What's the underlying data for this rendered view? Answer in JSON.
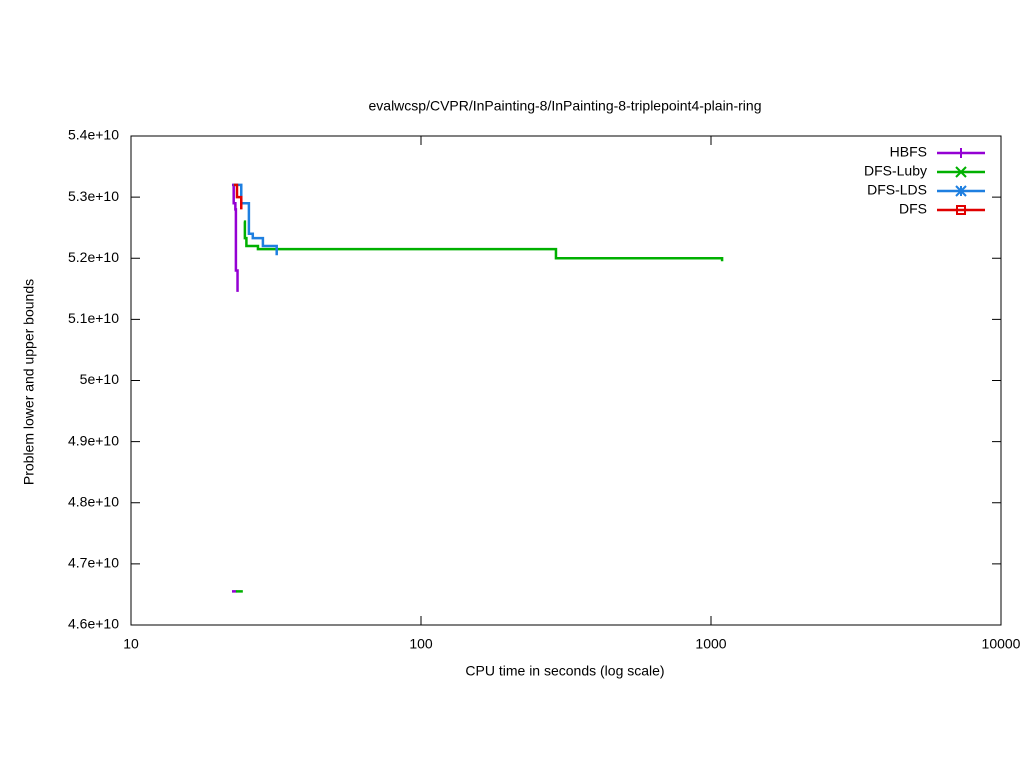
{
  "chart_data": {
    "type": "line",
    "title": "evalwcsp/CVPR/InPainting-8/InPainting-8-triplepoint4-plain-ring",
    "x_label": "CPU time in seconds (log scale)",
    "y_label": "Problem lower and upper bounds",
    "x_log": true,
    "steps": true,
    "legend": "top-right",
    "xlim": [
      10,
      10000
    ],
    "xticks": [
      10,
      100,
      1000,
      10000
    ],
    "ylim": [
      46000000000,
      54000000000
    ],
    "yticks": [
      {
        "value": 46000000000,
        "label": "4.6e+10"
      },
      {
        "value": 47000000000,
        "label": "4.7e+10"
      },
      {
        "value": 48000000000,
        "label": "4.8e+10"
      },
      {
        "value": 49000000000,
        "label": "4.9e+10"
      },
      {
        "value": 50000000000,
        "label": "5e+10"
      },
      {
        "value": 51000000000,
        "label": "5.1e+10"
      },
      {
        "value": 52000000000,
        "label": "5.2e+10"
      },
      {
        "value": 53000000000,
        "label": "5.3e+10"
      },
      {
        "value": 54000000000,
        "label": "5.4e+10"
      }
    ],
    "series": [
      {
        "name": "HBFS",
        "color": "#9400d3",
        "marker": "plus",
        "x": [
          22.3,
          22.6,
          22.9,
          23.0,
          23.3,
          null,
          22.3,
          23.1
        ],
        "values": [
          53200000000,
          52900000000,
          52800000000,
          51800000000,
          51450000000,
          null,
          46550000000,
          46550000000
        ]
      },
      {
        "name": "DFS-Luby",
        "color": "#00b000",
        "marker": "cross",
        "x": [
          24.5,
          24.7,
          25.0,
          27.4,
          292,
          1092,
          null,
          23.0,
          24.3
        ],
        "values": [
          52600000000,
          52330000000,
          52200000000,
          52150000000,
          52000000000,
          51950000000,
          null,
          46550000000,
          46550000000
        ]
      },
      {
        "name": "DFS-LDS",
        "color": "#1e7fe0",
        "marker": "star",
        "x": [
          22.5,
          24.0,
          25.5,
          26.3,
          28.5,
          31.8
        ],
        "values": [
          53200000000,
          52900000000,
          52400000000,
          52330000000,
          52200000000,
          52050000000
        ]
      },
      {
        "name": "DFS",
        "color": "#e00000",
        "marker": "square",
        "x": [
          22.6,
          23.2,
          24.0
        ],
        "values": [
          53200000000,
          53000000000,
          52800000000
        ]
      }
    ]
  }
}
